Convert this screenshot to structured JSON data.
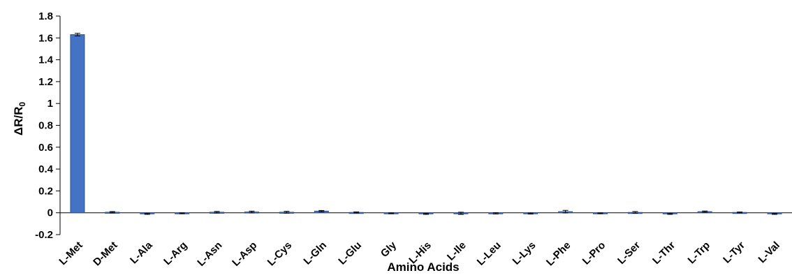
{
  "chart_data": {
    "type": "bar",
    "title": "",
    "xlabel": "Amino Acids",
    "ylabel": "ΔR/R",
    "ylabel_subscript": "0",
    "ylim": [
      -0.2,
      1.8
    ],
    "yticks": [
      "-0.2",
      "0",
      "0.2",
      "0.4",
      "0.6",
      "0.8",
      "1",
      "1.2",
      "1.4",
      "1.6",
      "1.8"
    ],
    "categories": [
      "L-Met",
      "D-Met",
      "L-Ala",
      "L-Arg",
      "L-Asn",
      "L-Asp",
      "L-Cys",
      "L-Gln",
      "L-Glu",
      "Gly",
      "L-His",
      "L-Ile",
      "L-Leu",
      "L-Lys",
      "L-Phe",
      "L-Pro",
      "L-Ser",
      "L-Thr",
      "L-Trp",
      "L-Tyr",
      "L-Val"
    ],
    "values": [
      1.63,
      0.005,
      -0.01,
      -0.005,
      0.005,
      0.007,
      0.005,
      0.015,
      0.003,
      -0.005,
      -0.01,
      -0.005,
      -0.005,
      -0.007,
      0.01,
      -0.005,
      0.003,
      -0.01,
      0.01,
      0.003,
      -0.01
    ],
    "errors": [
      0.012,
      0.006,
      0.005,
      0.004,
      0.007,
      0.008,
      0.008,
      0.006,
      0.005,
      0.004,
      0.005,
      0.01,
      0.006,
      0.005,
      0.012,
      0.004,
      0.008,
      0.005,
      0.006,
      0.004,
      0.005
    ],
    "bar_color": "#4472C4",
    "bar_edge_color": "#2F528F",
    "grid": false,
    "legend": "none"
  }
}
